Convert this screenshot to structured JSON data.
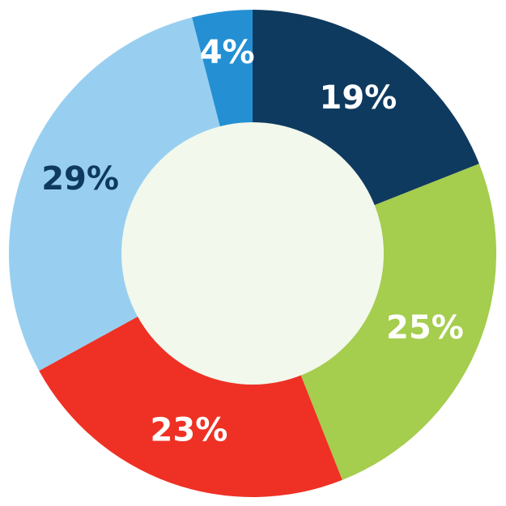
{
  "chart_data": {
    "type": "pie",
    "donut": true,
    "start": "top",
    "direction": "clockwise",
    "slices": [
      {
        "label": "19%",
        "value": 19,
        "color": "#0f3a5f",
        "label_color": "#ffffff"
      },
      {
        "label": "25%",
        "value": 25,
        "color": "#a5cd4e",
        "label_color": "#ffffff"
      },
      {
        "label": "23%",
        "value": 23,
        "color": "#ee3124",
        "label_color": "#ffffff"
      },
      {
        "label": "29%",
        "value": 29,
        "color": "#98cff0",
        "label_color": "#0f3a5f"
      },
      {
        "label": "4%",
        "value": 4,
        "color": "#2490d3",
        "label_color": "#ffffff"
      }
    ],
    "center_color": "#f2f8ec"
  }
}
